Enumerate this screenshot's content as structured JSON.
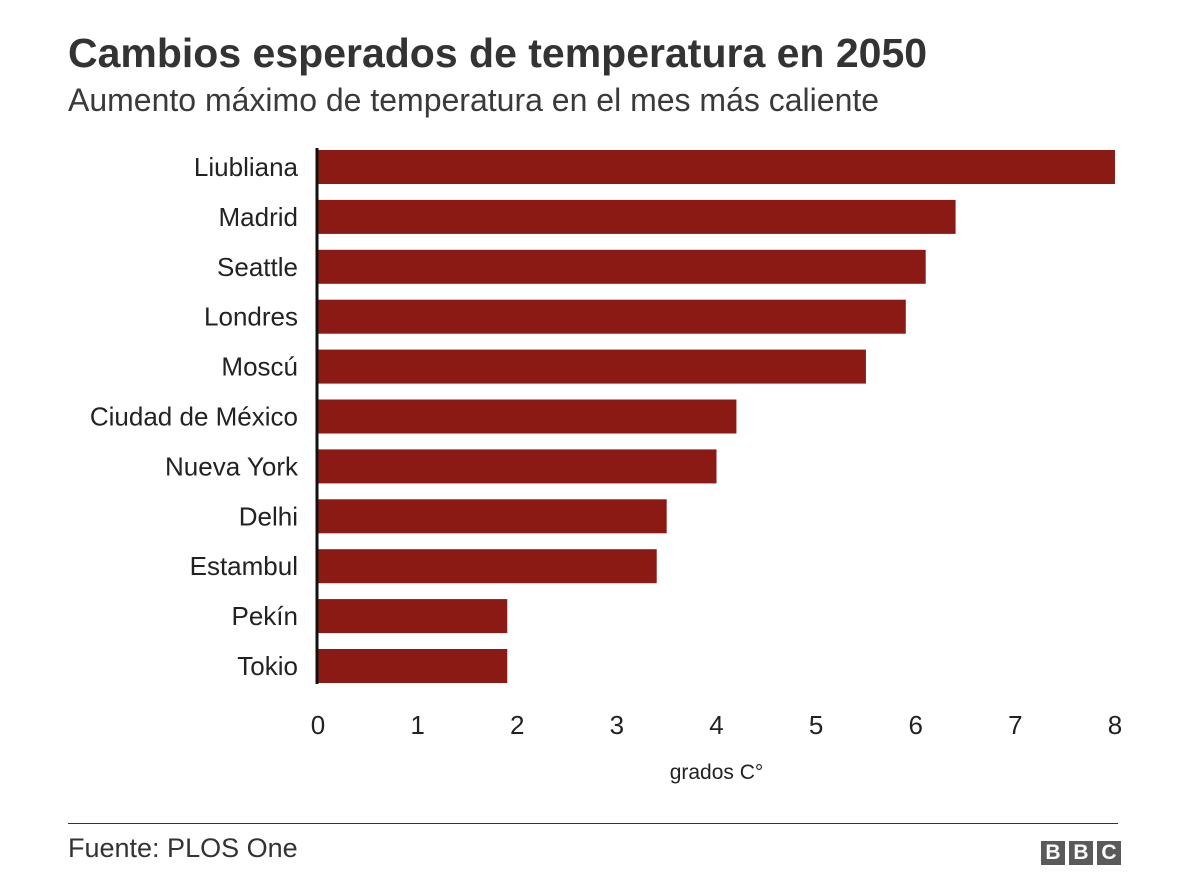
{
  "title": "Cambios esperados de temperatura en 2050",
  "subtitle": "Aumento máximo de temperatura en el mes más caliente",
  "source": "Fuente: PLOS One",
  "logo": [
    "B",
    "B",
    "C"
  ],
  "colors": {
    "bar": "#8c1a14",
    "axis": "#111111",
    "text": "#222222"
  },
  "chart_data": {
    "type": "bar",
    "orientation": "horizontal",
    "categories": [
      "Liubliana",
      "Madrid",
      "Seattle",
      "Londres",
      "Moscú",
      "Ciudad de México",
      "Nueva York",
      "Delhi",
      "Estambul",
      "Pekín",
      "Tokio"
    ],
    "values": [
      8.0,
      6.4,
      6.1,
      5.9,
      5.5,
      4.2,
      4.0,
      3.5,
      3.4,
      1.9,
      1.9
    ],
    "xlabel": "grados C°",
    "xlim": [
      0,
      8
    ],
    "xticks": [
      "0",
      "1",
      "2",
      "3",
      "4",
      "5",
      "6",
      "7",
      "8"
    ],
    "grid": false
  }
}
